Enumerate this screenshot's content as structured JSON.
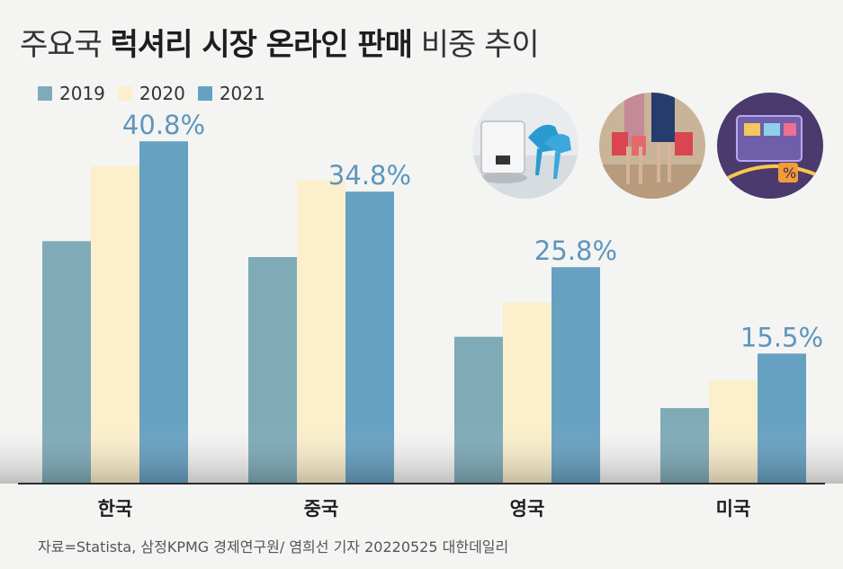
{
  "title": {
    "prefix": "주요국",
    "highlight": "럭셔리 시장 온라인 판매",
    "suffix": "비중 추이"
  },
  "legend": [
    {
      "label": "2019",
      "color": "#7fabb8"
    },
    {
      "label": "2020",
      "color": "#fbefcc"
    },
    {
      "label": "2021",
      "color": "#67a1c2"
    }
  ],
  "chart_data": {
    "type": "bar",
    "categories": [
      "한국",
      "중국",
      "영국",
      "미국"
    ],
    "series": [
      {
        "name": "2019",
        "values": [
          28.9,
          27.0,
          17.5,
          9.0
        ],
        "color": "#7fabb8"
      },
      {
        "name": "2020",
        "values": [
          37.9,
          36.2,
          21.6,
          12.3
        ],
        "color": "#fbefcc"
      },
      {
        "name": "2021",
        "values": [
          40.8,
          34.8,
          25.8,
          15.5
        ],
        "color": "#67a1c2"
      }
    ],
    "data_labels": [
      "40.8%",
      "34.8%",
      "25.8%",
      "15.5%"
    ],
    "data_label_color": "#5d96bc",
    "ylim": [
      0,
      45
    ],
    "grid": false,
    "legend_position": "top-left"
  },
  "source": "자료=Statista, 삼정KPMG 경제연구원/ 염희선 기자 20220525 대한데일리"
}
